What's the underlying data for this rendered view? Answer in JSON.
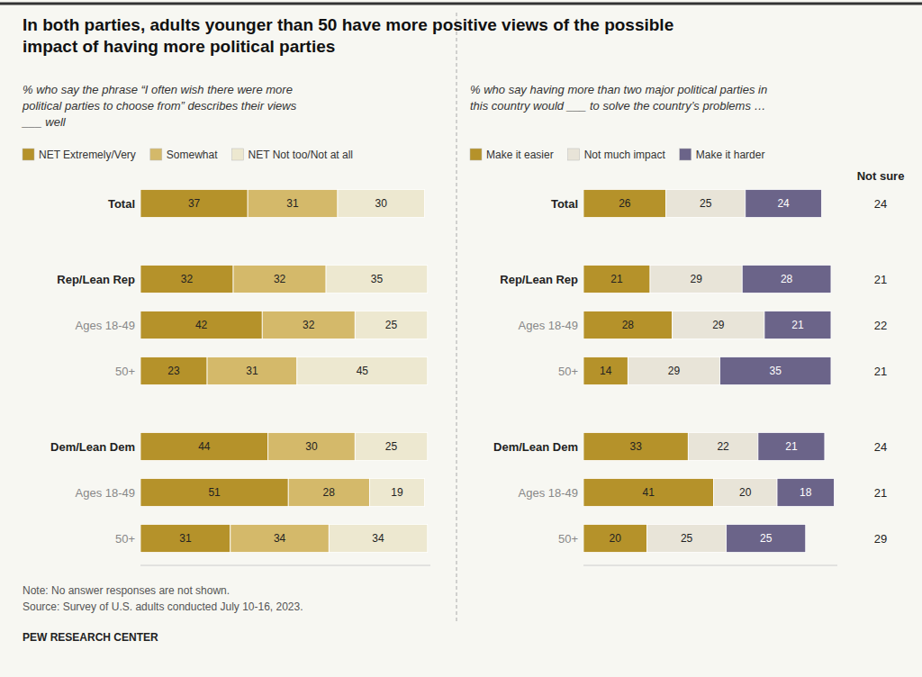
{
  "chart_data": [
    {
      "type": "bar",
      "orientation": "horizontal",
      "stacked": true,
      "data_labels": true,
      "legend": "top",
      "tick_labels": "y",
      "title": "In both parties, adults younger than 50 have more positive views of the possible\nimpact of having more political parties",
      "subtitle": "% who say the phrase “I often wish there were more\npolitical parties to choose from” describes their views\n___ well",
      "categories": [
        "Total",
        "Rep/Lean Rep",
        "Ages 18-49",
        "50+",
        "Dem/Lean Dem",
        "Ages 18-49",
        "50+"
      ],
      "series": [
        {
          "name": "NET Extremely/Very",
          "color": "#b5922a",
          "values": [
            37,
            32,
            42,
            23,
            44,
            51,
            31
          ]
        },
        {
          "name": "Somewhat",
          "color": "#d4b96a",
          "values": [
            31,
            32,
            32,
            31,
            30,
            28,
            34
          ]
        },
        {
          "name": "NET Not too/Not at all",
          "color": "#ede8d0",
          "values": [
            30,
            35,
            25,
            45,
            25,
            19,
            34
          ]
        }
      ],
      "xlim": [
        0,
        100
      ],
      "note": "Note: No answer responses are not shown.\nSource: Survey of U.S. adults conducted July 10-16, 2023.",
      "source": "PEW RESEARCH CENTER"
    },
    {
      "type": "bar",
      "orientation": "horizontal",
      "stacked": true,
      "data_labels": true,
      "legend": "top",
      "tick_labels": "y",
      "subtitle": "% who say having more than two major political parties in\nthis country would ___ to solve the country’s problems …",
      "categories": [
        "Total",
        "Rep/Lean Rep",
        "Ages 18-49",
        "50+",
        "Dem/Lean Dem",
        "Ages 18-49",
        "50+"
      ],
      "series": [
        {
          "name": "Make it easier",
          "color": "#b5922a",
          "values": [
            26,
            21,
            28,
            14,
            33,
            41,
            20
          ]
        },
        {
          "name": "Not much impact",
          "color": "#e8e4d8",
          "values": [
            25,
            29,
            29,
            29,
            22,
            20,
            25
          ]
        },
        {
          "name": "Make it harder",
          "color": "#6b6489",
          "values": [
            24,
            28,
            21,
            35,
            21,
            18,
            25
          ]
        },
        {
          "name": "Not sure",
          "type": "text",
          "values": [
            24,
            21,
            22,
            21,
            24,
            21,
            29
          ]
        }
      ],
      "xlim": [
        0,
        80
      ]
    }
  ]
}
